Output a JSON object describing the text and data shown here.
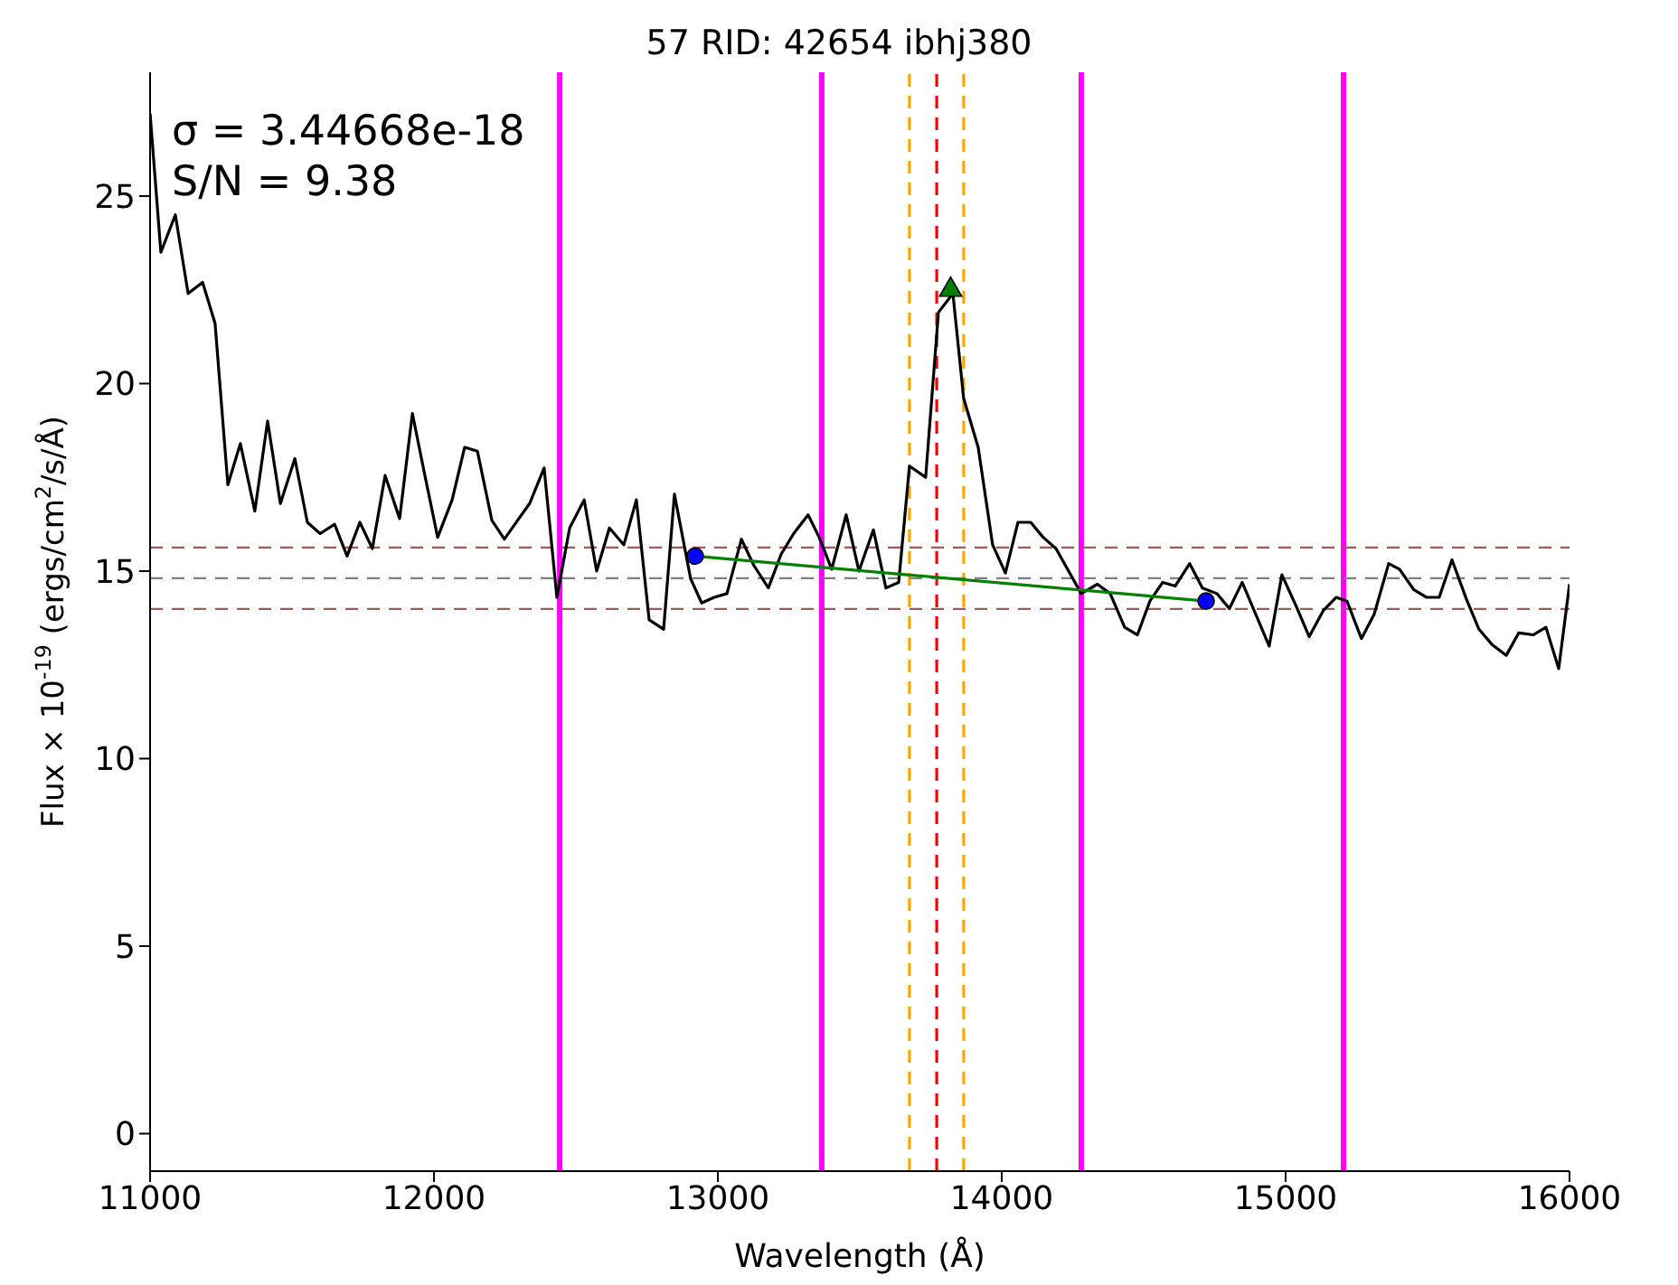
{
  "chart_data": {
    "type": "line",
    "title": "57 RID: 42654 ibhj380",
    "xlabel": "Wavelength (Å)",
    "ylabel": "Flux × 10$^{-19}$ (ergs/cm$^{2}$/s/Å)",
    "annotations": [
      "σ = 3.44668e-18",
      "S/N = 9.38"
    ],
    "xlim": [
      11000,
      16000
    ],
    "xticks": [
      11000,
      12000,
      13000,
      14000,
      15000,
      16000
    ],
    "ylim": [
      -1,
      28.3
    ],
    "yticks": [
      0,
      5,
      10,
      15,
      20,
      25
    ],
    "grid": false,
    "series": [
      {
        "color": "#000000",
        "x": [
          11000,
          11038,
          11089,
          11134,
          11185,
          11229,
          11274,
          11318,
          11369,
          11414,
          11459,
          11510,
          11554,
          11599,
          11650,
          11694,
          11739,
          11783,
          11828,
          11879,
          11924,
          11968,
          12013,
          12064,
          12108,
          12153,
          12204,
          12248,
          12299,
          12337,
          12388,
          12433,
          12478,
          12529,
          12573,
          12618,
          12669,
          12713,
          12758,
          12809,
          12847,
          12904,
          12943,
          12987,
          13032,
          13083,
          13127,
          13178,
          13223,
          13267,
          13318,
          13357,
          13401,
          13452,
          13497,
          13548,
          13592,
          13637,
          13675,
          13732,
          13777,
          13828,
          13866,
          13917,
          13968,
          14013,
          14057,
          14102,
          14146,
          14191,
          14280,
          14337,
          14382,
          14433,
          14478,
          14522,
          14567,
          14611,
          14662,
          14707,
          14758,
          14802,
          14847,
          14942,
          14987,
          15038,
          15083,
          15133,
          15178,
          15216,
          15267,
          15312,
          15363,
          15401,
          15452,
          15497,
          15541,
          15586,
          15637,
          15681,
          15726,
          15777,
          15821,
          15872,
          15917,
          15962,
          16000
        ],
        "values": [
          27.2,
          23.5,
          24.5,
          22.4,
          22.7,
          21.6,
          17.3,
          18.4,
          16.6,
          19.0,
          16.8,
          18.0,
          16.3,
          16.0,
          16.25,
          15.4,
          16.3,
          15.6,
          17.55,
          16.4,
          19.2,
          17.55,
          15.9,
          16.9,
          18.3,
          18.2,
          16.35,
          15.85,
          16.4,
          16.8,
          17.75,
          14.3,
          16.15,
          16.9,
          15.0,
          16.15,
          15.7,
          16.9,
          13.7,
          13.45,
          17.05,
          14.8,
          14.15,
          14.3,
          14.4,
          15.85,
          15.15,
          14.55,
          15.45,
          16.0,
          16.5,
          15.9,
          15.05,
          16.5,
          15.0,
          16.1,
          14.55,
          14.7,
          17.8,
          17.5,
          21.9,
          22.4,
          19.6,
          18.3,
          15.7,
          14.95,
          16.3,
          16.3,
          15.9,
          15.6,
          14.4,
          14.65,
          14.4,
          13.5,
          13.3,
          14.2,
          14.7,
          14.6,
          15.2,
          14.55,
          14.4,
          14.0,
          14.7,
          13.0,
          14.9,
          14.05,
          13.25,
          13.95,
          14.3,
          14.2,
          13.2,
          13.85,
          15.2,
          15.05,
          14.5,
          14.3,
          14.3,
          15.3,
          14.25,
          13.45,
          13.05,
          12.75,
          13.35,
          13.3,
          13.5,
          12.4,
          14.65
        ]
      },
      {
        "type": "line",
        "color": "#008000",
        "x": [
          12920,
          14720
        ],
        "values": [
          15.4,
          14.2
        ]
      },
      {
        "type": "scatter",
        "color": "#0000ff",
        "marker": "circle",
        "x": [
          12920,
          14720
        ],
        "values": [
          15.4,
          14.2
        ]
      },
      {
        "type": "scatter",
        "color": "#008000",
        "marker": "triangle",
        "x": [
          13820
        ],
        "values": [
          22.5
        ]
      }
    ],
    "ref_lines": [
      {
        "axis": "x",
        "value": 12443,
        "color": "#ff00ff",
        "line_style": "solid"
      },
      {
        "axis": "x",
        "value": 13366,
        "color": "#ff00ff",
        "line_style": "solid"
      },
      {
        "axis": "x",
        "value": 14280,
        "color": "#ff00ff",
        "line_style": "solid"
      },
      {
        "axis": "x",
        "value": 15204,
        "color": "#ff00ff",
        "line_style": "solid"
      },
      {
        "axis": "x",
        "value": 13675,
        "color": "#ffa500",
        "line_style": "dashed"
      },
      {
        "axis": "x",
        "value": 13866,
        "color": "#ffa500",
        "line_style": "dashed"
      },
      {
        "axis": "x",
        "value": 13771,
        "color": "#ff0000",
        "line_style": "dashed"
      },
      {
        "axis": "y",
        "value": 15.63,
        "color": "#a05a5a",
        "line_style": "dashed"
      },
      {
        "axis": "y",
        "value": 14.81,
        "color": "#808080",
        "line_style": "dashed"
      },
      {
        "axis": "y",
        "value": 13.99,
        "color": "#a05a5a",
        "line_style": "dashed"
      }
    ]
  }
}
